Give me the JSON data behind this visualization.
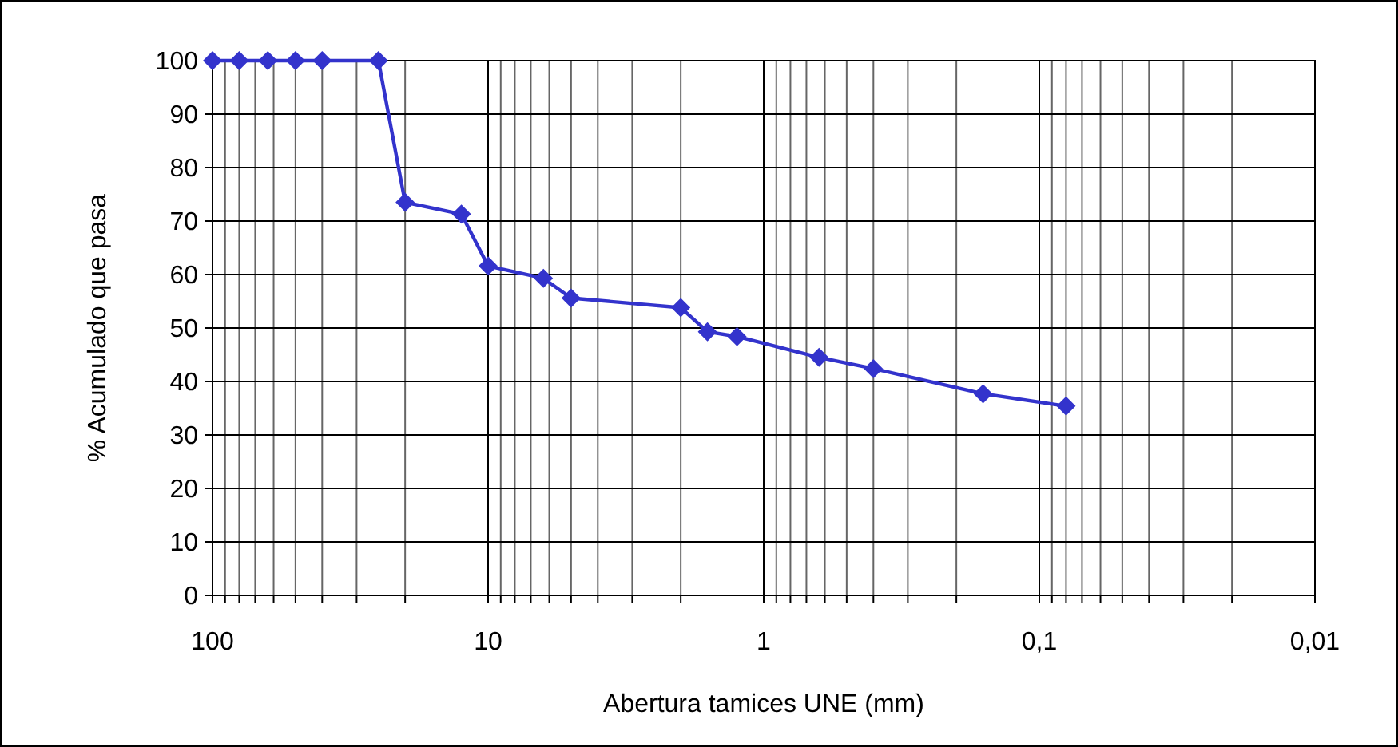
{
  "chart_data": {
    "type": "line",
    "xlabel": "Abertura tamices UNE (mm)",
    "ylabel": "% Acumulado que pasa",
    "log": "x",
    "xlim": [
      100,
      0.01
    ],
    "ylim": [
      0,
      100
    ],
    "xticks": [
      100,
      {
        "value": 90,
        "label": null
      },
      {
        "value": 80,
        "label": null
      },
      {
        "value": 70,
        "label": null
      },
      {
        "value": 60,
        "label": null
      },
      {
        "value": 50,
        "label": null
      },
      {
        "value": 40,
        "label": null
      },
      {
        "value": 30,
        "label": null
      },
      {
        "value": 20,
        "label": null
      },
      10,
      {
        "value": 9,
        "label": null
      },
      {
        "value": 8,
        "label": null
      },
      {
        "value": 7,
        "label": null
      },
      {
        "value": 6,
        "label": null
      },
      {
        "value": 5,
        "label": null
      },
      {
        "value": 4,
        "label": null
      },
      {
        "value": 3,
        "label": null
      },
      {
        "value": 2,
        "label": null
      },
      1,
      {
        "value": 0.9,
        "label": null
      },
      {
        "value": 0.8,
        "label": null
      },
      {
        "value": 0.7,
        "label": null
      },
      {
        "value": 0.6,
        "label": null
      },
      {
        "value": 0.5,
        "label": null
      },
      {
        "value": 0.4,
        "label": null
      },
      {
        "value": 0.3,
        "label": null
      },
      {
        "value": 0.2,
        "label": null
      },
      {
        "value": 0.1,
        "label": "0,1"
      },
      {
        "value": 0.09,
        "label": null
      },
      {
        "value": 0.08,
        "label": null
      },
      {
        "value": 0.07,
        "label": null
      },
      {
        "value": 0.06,
        "label": null
      },
      {
        "value": 0.05,
        "label": null
      },
      {
        "value": 0.04,
        "label": null
      },
      {
        "value": 0.03,
        "label": null
      },
      {
        "value": 0.02,
        "label": null
      },
      {
        "value": 0.01,
        "label": "0,01"
      }
    ],
    "yticks": [
      0,
      10,
      20,
      30,
      40,
      50,
      60,
      70,
      80,
      90,
      100
    ],
    "grid": true,
    "marker": "diamond",
    "line_style": "solid",
    "series": [
      {
        "color": "#3333cc",
        "x": [
          100,
          80,
          63,
          50,
          40,
          25,
          20,
          12.5,
          10,
          6.3,
          5,
          2,
          1.6,
          1.25,
          0.63,
          0.4,
          0.16,
          0.08
        ],
        "values": [
          100,
          100,
          100,
          100,
          100,
          100,
          73.5,
          71.3,
          61.6,
          59.3,
          55.6,
          53.8,
          49.3,
          48.4,
          44.5,
          42.4,
          37.7,
          35.4
        ]
      }
    ]
  }
}
